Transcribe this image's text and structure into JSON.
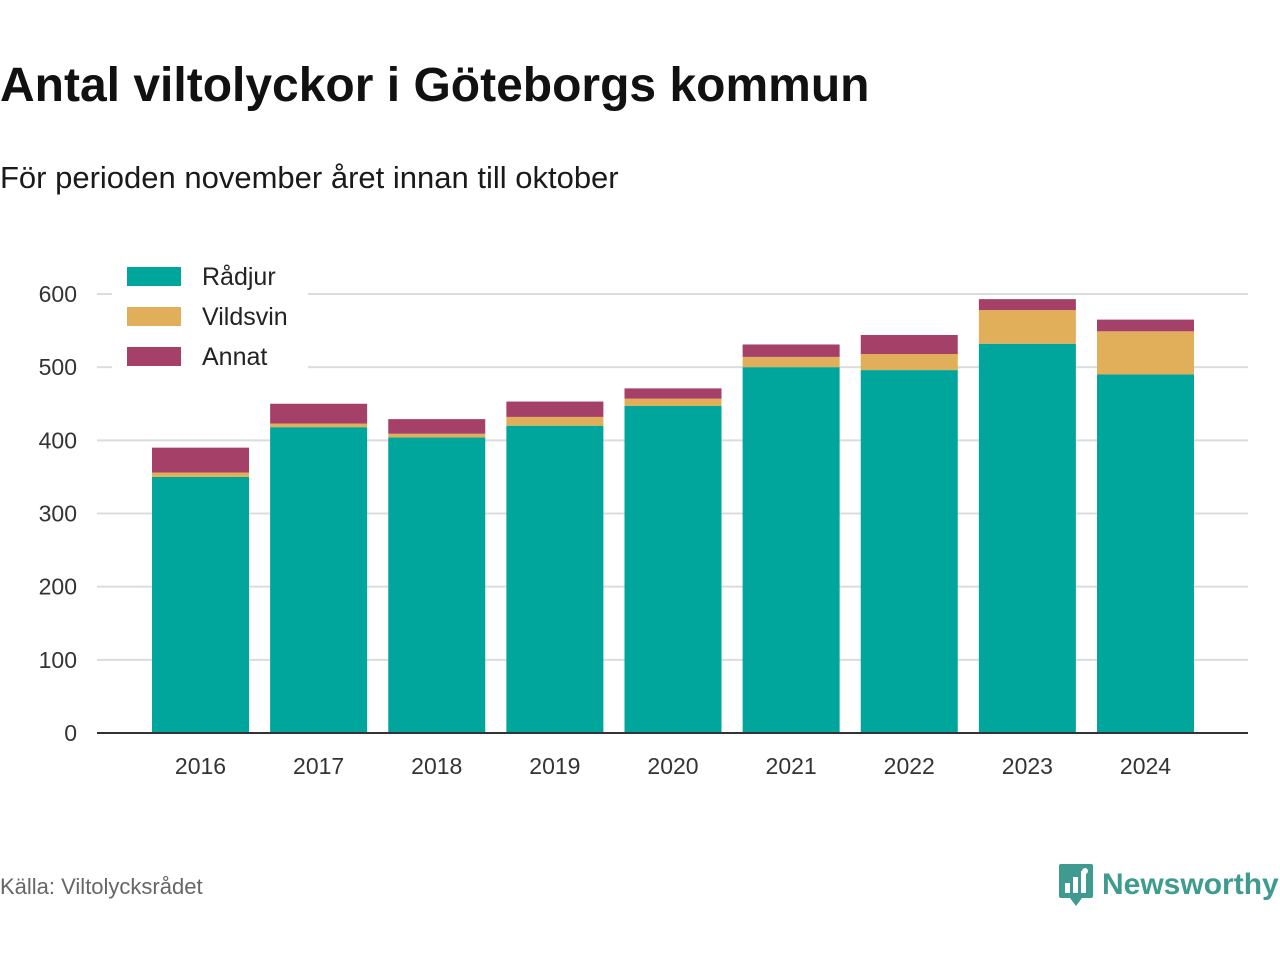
{
  "title": "Antal viltolyckor i Göteborgs kommun",
  "subtitle": "För perioden november året innan till oktober",
  "source": "Källa: Viltolycksrådet",
  "brand": {
    "name": "Newsworthy",
    "icon": "newsworthy-logo-icon",
    "color": "#3f9b8f"
  },
  "chart_data": {
    "type": "bar",
    "stacked": true,
    "categories": [
      "2016",
      "2017",
      "2018",
      "2019",
      "2020",
      "2021",
      "2022",
      "2023",
      "2024"
    ],
    "series": [
      {
        "name": "Rådjur",
        "color": "#00a59b",
        "values": [
          350,
          418,
          404,
          420,
          447,
          500,
          496,
          532,
          490
        ]
      },
      {
        "name": "Vildsvin",
        "color": "#e1ae5a",
        "values": [
          6,
          5,
          5,
          12,
          10,
          14,
          22,
          46,
          59
        ]
      },
      {
        "name": "Annat",
        "color": "#a54069",
        "values": [
          34,
          27,
          20,
          21,
          14,
          17,
          26,
          15,
          16
        ]
      }
    ],
    "yticks": [
      0,
      100,
      200,
      300,
      400,
      500,
      600
    ],
    "ylim": [
      0,
      600
    ],
    "grid": true,
    "legend_position": "top-left",
    "xlabel": "",
    "ylabel": ""
  }
}
